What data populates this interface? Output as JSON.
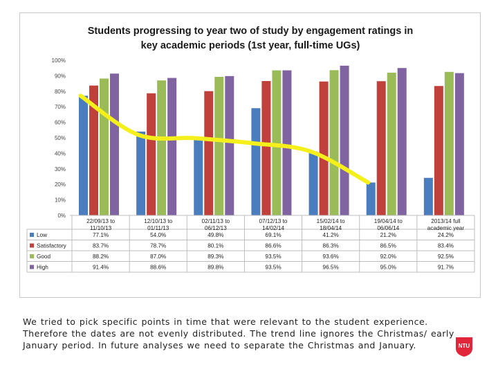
{
  "chart_data": {
    "type": "bar",
    "title_lines": [
      "Students progressing to year two of study by engagement ratings in",
      "key academic periods (1st year, full-time UGs)"
    ],
    "categories": [
      [
        "22/09/13 to",
        "11/10/13"
      ],
      [
        "12/10/13 to",
        "01/11/13"
      ],
      [
        "02/11/13 to",
        "06/12/13"
      ],
      [
        "07/12/13 to",
        "14/02/14"
      ],
      [
        "15/02/14 to",
        "18/04/14"
      ],
      [
        "19/04/14 to",
        "06/06/14"
      ],
      [
        "2013/14 full",
        "academic year"
      ]
    ],
    "series": [
      {
        "name": "Low",
        "color": "#4a7dbe",
        "values": [
          77.1,
          54.0,
          49.8,
          69.1,
          41.2,
          21.2,
          24.2
        ],
        "labels": [
          "77.1%",
          "54.0%",
          "49.8%",
          "69.1%",
          "41.2%",
          "21.2%",
          "24.2%"
        ]
      },
      {
        "name": "Satisfactory",
        "color": "#c0413c",
        "values": [
          83.7,
          78.7,
          80.1,
          86.6,
          86.3,
          86.5,
          83.4
        ],
        "labels": [
          "83.7%",
          "78.7%",
          "80.1%",
          "86.6%",
          "86.3%",
          "86.5%",
          "83.4%"
        ]
      },
      {
        "name": "Good",
        "color": "#9bbb59",
        "values": [
          88.2,
          87.0,
          89.3,
          93.5,
          93.6,
          92.0,
          92.5
        ],
        "labels": [
          "88.2%",
          "87.0%",
          "89.3%",
          "93.5%",
          "93.6%",
          "92.0%",
          "92.5%"
        ]
      },
      {
        "name": "High",
        "color": "#8064a2",
        "values": [
          91.4,
          88.6,
          89.8,
          93.5,
          96.5,
          95.0,
          91.7
        ],
        "labels": [
          "91.4%",
          "88.6%",
          "89.8%",
          "93.5%",
          "96.5%",
          "95.0%",
          "91.7%"
        ]
      }
    ],
    "yticks": [
      "0%",
      "10%",
      "20%",
      "30%",
      "40%",
      "50%",
      "60%",
      "70%",
      "80%",
      "90%",
      "100%"
    ],
    "ylim": [
      0,
      100
    ],
    "trend_line": {
      "color": "#f5f01c",
      "values": [
        77.1,
        52.0,
        49.8,
        46.5,
        41.2,
        21.2
      ]
    },
    "legend": "table-below",
    "grid": false
  },
  "caption": "We tried to pick specific points in time that were relevant to the student experience. Therefore the dates are not evenly distributed. The trend line ignores the Christmas/ early January period. In future analyses we need to separate the Christmas and January.",
  "logo_text": "NTU",
  "colors": {
    "accent": "#e2263a"
  }
}
